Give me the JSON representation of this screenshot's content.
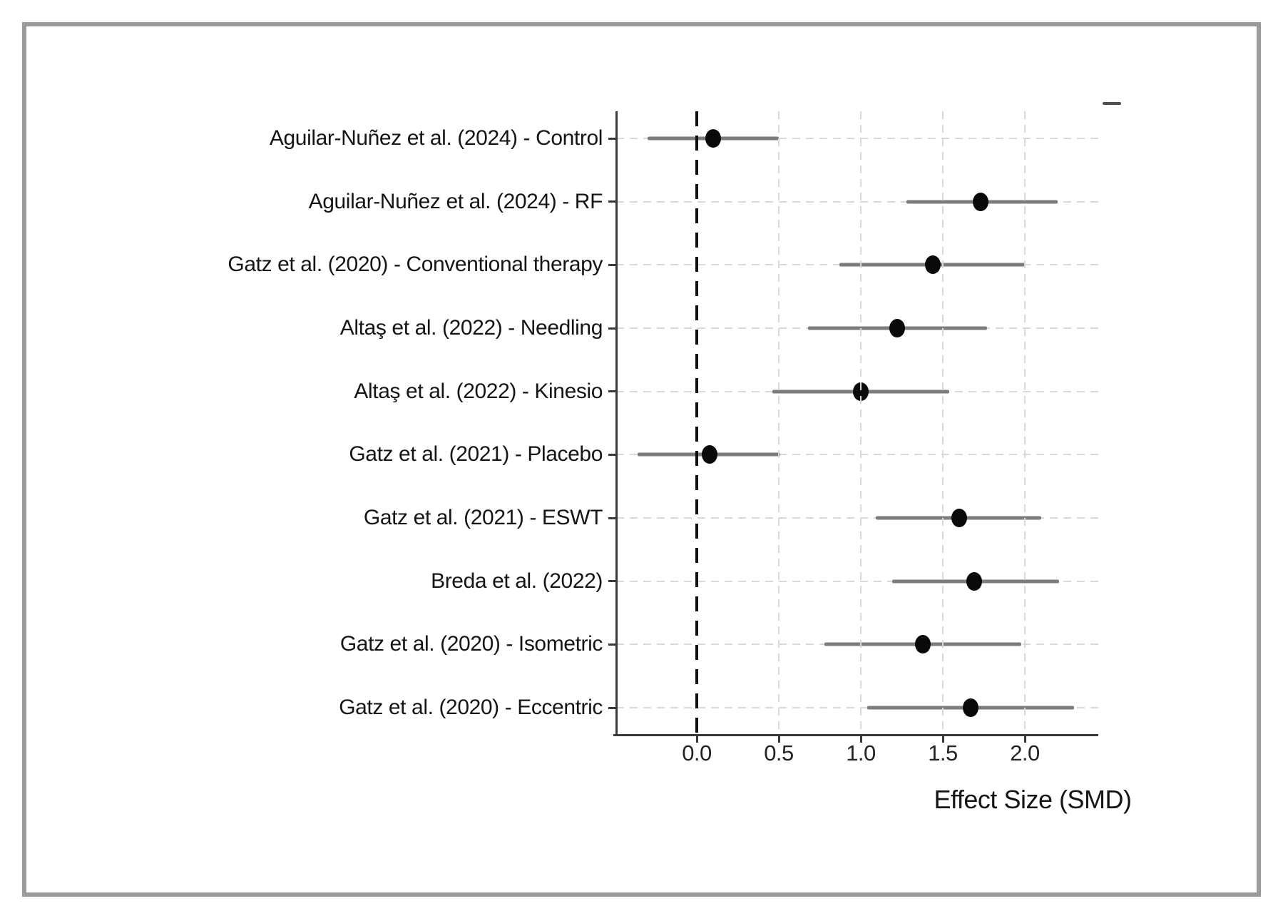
{
  "figure": {
    "frame_color": "#9b9b9b",
    "background_color": "#ffffff"
  },
  "chart_data": {
    "type": "scatter",
    "style": "forest-plot",
    "title": "",
    "xlabel": "Effect Size (SMD)",
    "ylabel": "",
    "xlim": [
      -0.5,
      2.45
    ],
    "xticks": [
      0.0,
      0.5,
      1.0,
      1.5,
      2.0
    ],
    "xtick_labels": [
      "0.0",
      "0.5",
      "1.0",
      "1.5",
      "2.0"
    ],
    "reference_line_x": 0.0,
    "grid": true,
    "error_bars": true,
    "studies": [
      {
        "label": "Aguilar-Nuñez et al. (2024) - Control",
        "effect": 0.1,
        "ci_low": -0.3,
        "ci_high": 0.5
      },
      {
        "label": "Aguilar-Nuñez et al. (2024) - RF",
        "effect": 1.73,
        "ci_low": 1.28,
        "ci_high": 2.2
      },
      {
        "label": "Gatz et al. (2020) - Conventional therapy",
        "effect": 1.44,
        "ci_low": 0.87,
        "ci_high": 2.0
      },
      {
        "label": "Altaş et al. (2022) - Needling",
        "effect": 1.22,
        "ci_low": 0.68,
        "ci_high": 1.77
      },
      {
        "label": "Altaş et al. (2022) - Kinesio",
        "effect": 1.0,
        "ci_low": 0.46,
        "ci_high": 1.54
      },
      {
        "label": "Gatz et al. (2021) - Placebo",
        "effect": 0.08,
        "ci_low": -0.36,
        "ci_high": 0.51
      },
      {
        "label": "Gatz et al. (2021) - ESWT",
        "effect": 1.6,
        "ci_low": 1.09,
        "ci_high": 2.1
      },
      {
        "label": "Breda et al. (2022)",
        "effect": 1.69,
        "ci_low": 1.19,
        "ci_high": 2.21
      },
      {
        "label": "Gatz et al. (2020) - Isometric",
        "effect": 1.38,
        "ci_low": 0.78,
        "ci_high": 1.98
      },
      {
        "label": "Gatz et al. (2020) - Eccentric",
        "effect": 1.67,
        "ci_low": 1.04,
        "ci_high": 2.3
      }
    ],
    "colors": {
      "ci_line": "#7c7c7c",
      "point": "#0a0a0a",
      "reference_line": "#111111",
      "gridline": "#d9d9d9",
      "spine": "#3a3a3a",
      "text": "#151515"
    }
  }
}
